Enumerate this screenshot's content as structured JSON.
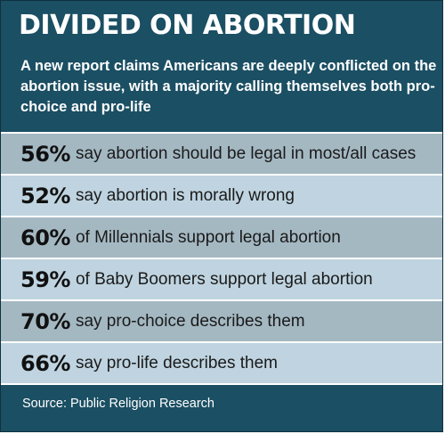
{
  "header": {
    "title": "DIVIDED ON ABORTION",
    "subtitle": "A new report claims Americans are deeply conflicted on the abortion issue, with a majority calling themselves both pro-choice and pro-life"
  },
  "chart_data": {
    "type": "table",
    "title": "DIVIDED ON ABORTION",
    "subtitle": "A new report claims Americans are deeply conflicted on the abortion issue, with a majority calling themselves both pro-choice and pro-life",
    "rows": [
      {
        "percent": "56%",
        "value": 56,
        "text": "say abortion should be legal in most/all cases"
      },
      {
        "percent": "52%",
        "value": 52,
        "text": "say abortion is morally wrong"
      },
      {
        "percent": "60%",
        "value": 60,
        "text": "of Millennials support legal abortion"
      },
      {
        "percent": "59%",
        "value": 59,
        "text": "of Baby Boomers support legal abortion"
      },
      {
        "percent": "70%",
        "value": 70,
        "text": "say pro-choice describes them"
      },
      {
        "percent": "66%",
        "value": 66,
        "text": "say pro-life describes them"
      }
    ],
    "source": "Source: Public Religion Research"
  },
  "footer": {
    "source": "Source: Public Religion Research"
  },
  "colors": {
    "background": "#1b4f63",
    "row_dark": "#a4b8c2",
    "row_light": "#bfd4e0",
    "text_light": "#ffffff",
    "text_dark": "#111111"
  }
}
